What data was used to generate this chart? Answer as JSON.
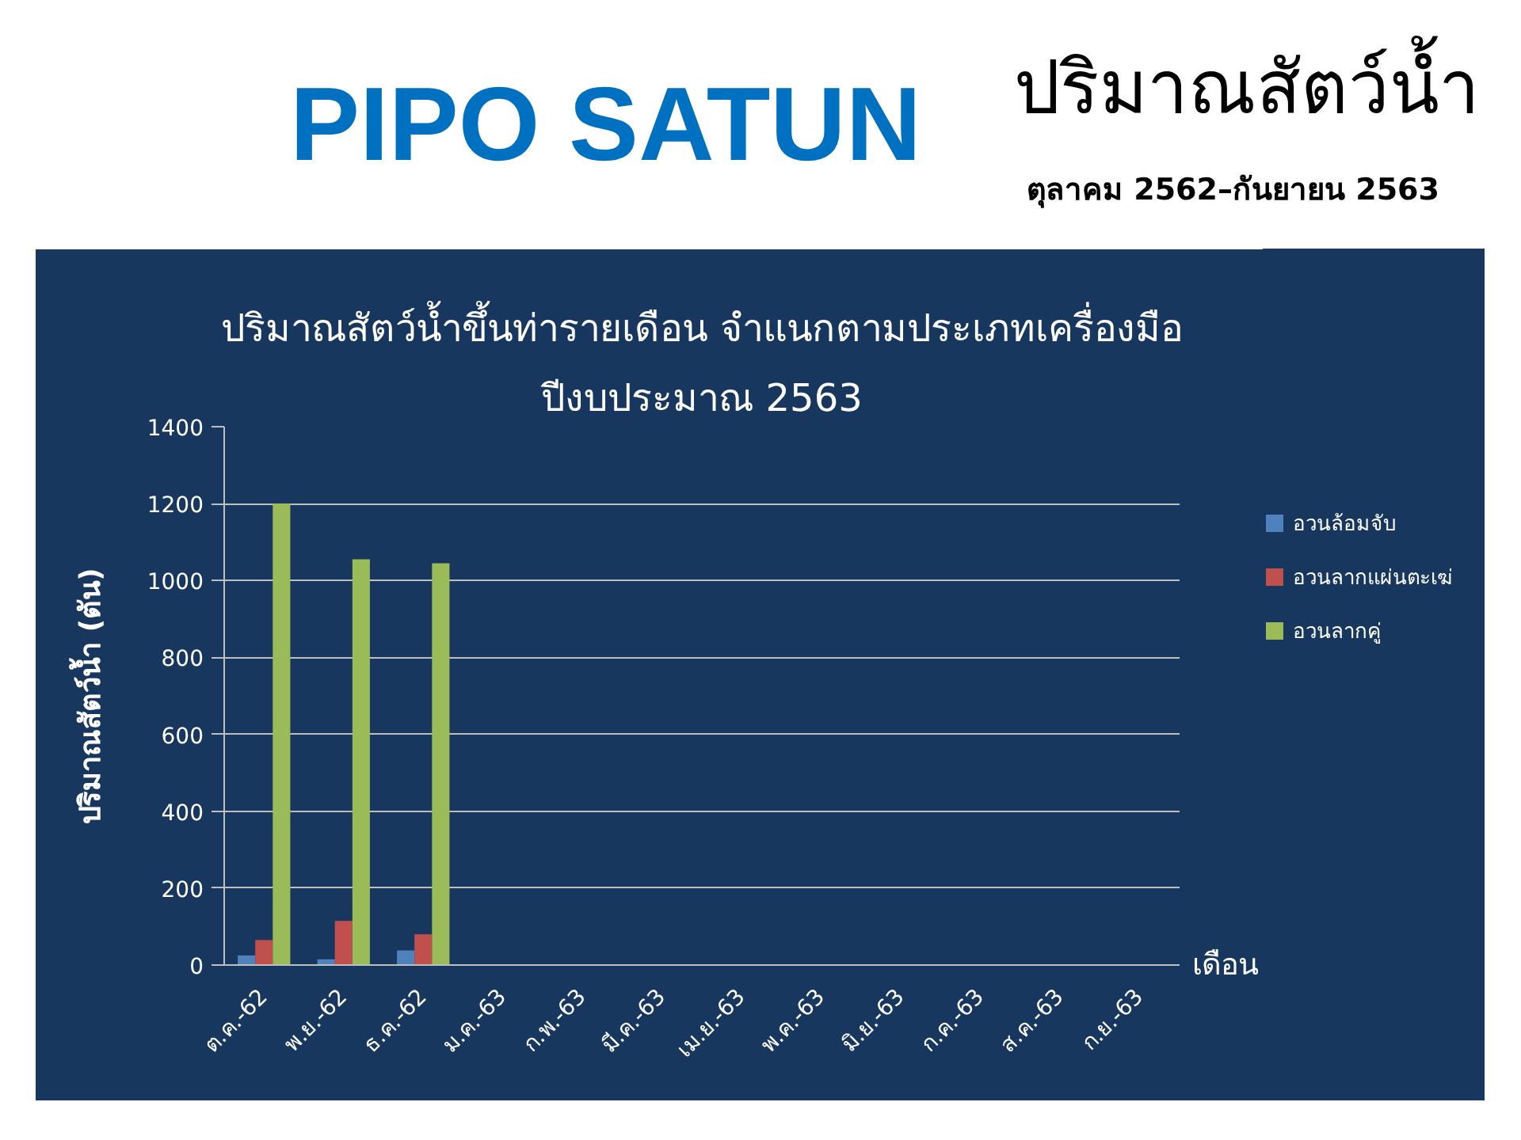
{
  "chart_data": {
    "type": "bar",
    "title": "ปริมาณสัตว์น้ำขึ้นท่ารายเดือน จำแนกตามประเภทเครื่องมือ",
    "subtitle": "ปีงบประมาณ 2563",
    "xlabel": "เดือน",
    "ylabel": "ปริมาณสัตว์น้ำ (ตัน)",
    "annotations": [
      "PIPO SATUN",
      "ปริมาณสัตว์น้ำ",
      "ตุลาคม 2562–กันยายน 2563"
    ],
    "categories": [
      "ต.ค.-62",
      "พ.ย.-62",
      "ธ.ค.-62",
      "ม.ค.-63",
      "ก.พ.-63",
      "มี.ค.-63",
      "เม.ย.-63",
      "พ.ค.-63",
      "มิ.ย.-63",
      "ก.ค.-63",
      "ส.ค.-63",
      "ก.ย.-63"
    ],
    "series": [
      {
        "name": "อวนล้อมจับ",
        "color": "#4f81bd",
        "values": [
          25,
          15,
          38,
          null,
          null,
          null,
          null,
          null,
          null,
          null,
          null,
          null
        ]
      },
      {
        "name": "อวนลากแผ่นตะเฆ่",
        "color": "#c0504d",
        "values": [
          65,
          115,
          80,
          null,
          null,
          null,
          null,
          null,
          null,
          null,
          null,
          null
        ]
      },
      {
        "name": "อวนลากคู่",
        "color": "#9bbb59",
        "values": [
          1200,
          1055,
          1045,
          null,
          null,
          null,
          null,
          null,
          null,
          null,
          null,
          null
        ]
      }
    ],
    "ylim": [
      0,
      1400
    ],
    "yticks": [
      0,
      200,
      400,
      600,
      800,
      1000,
      1200,
      1400
    ],
    "grid": "y",
    "legend": "right"
  }
}
